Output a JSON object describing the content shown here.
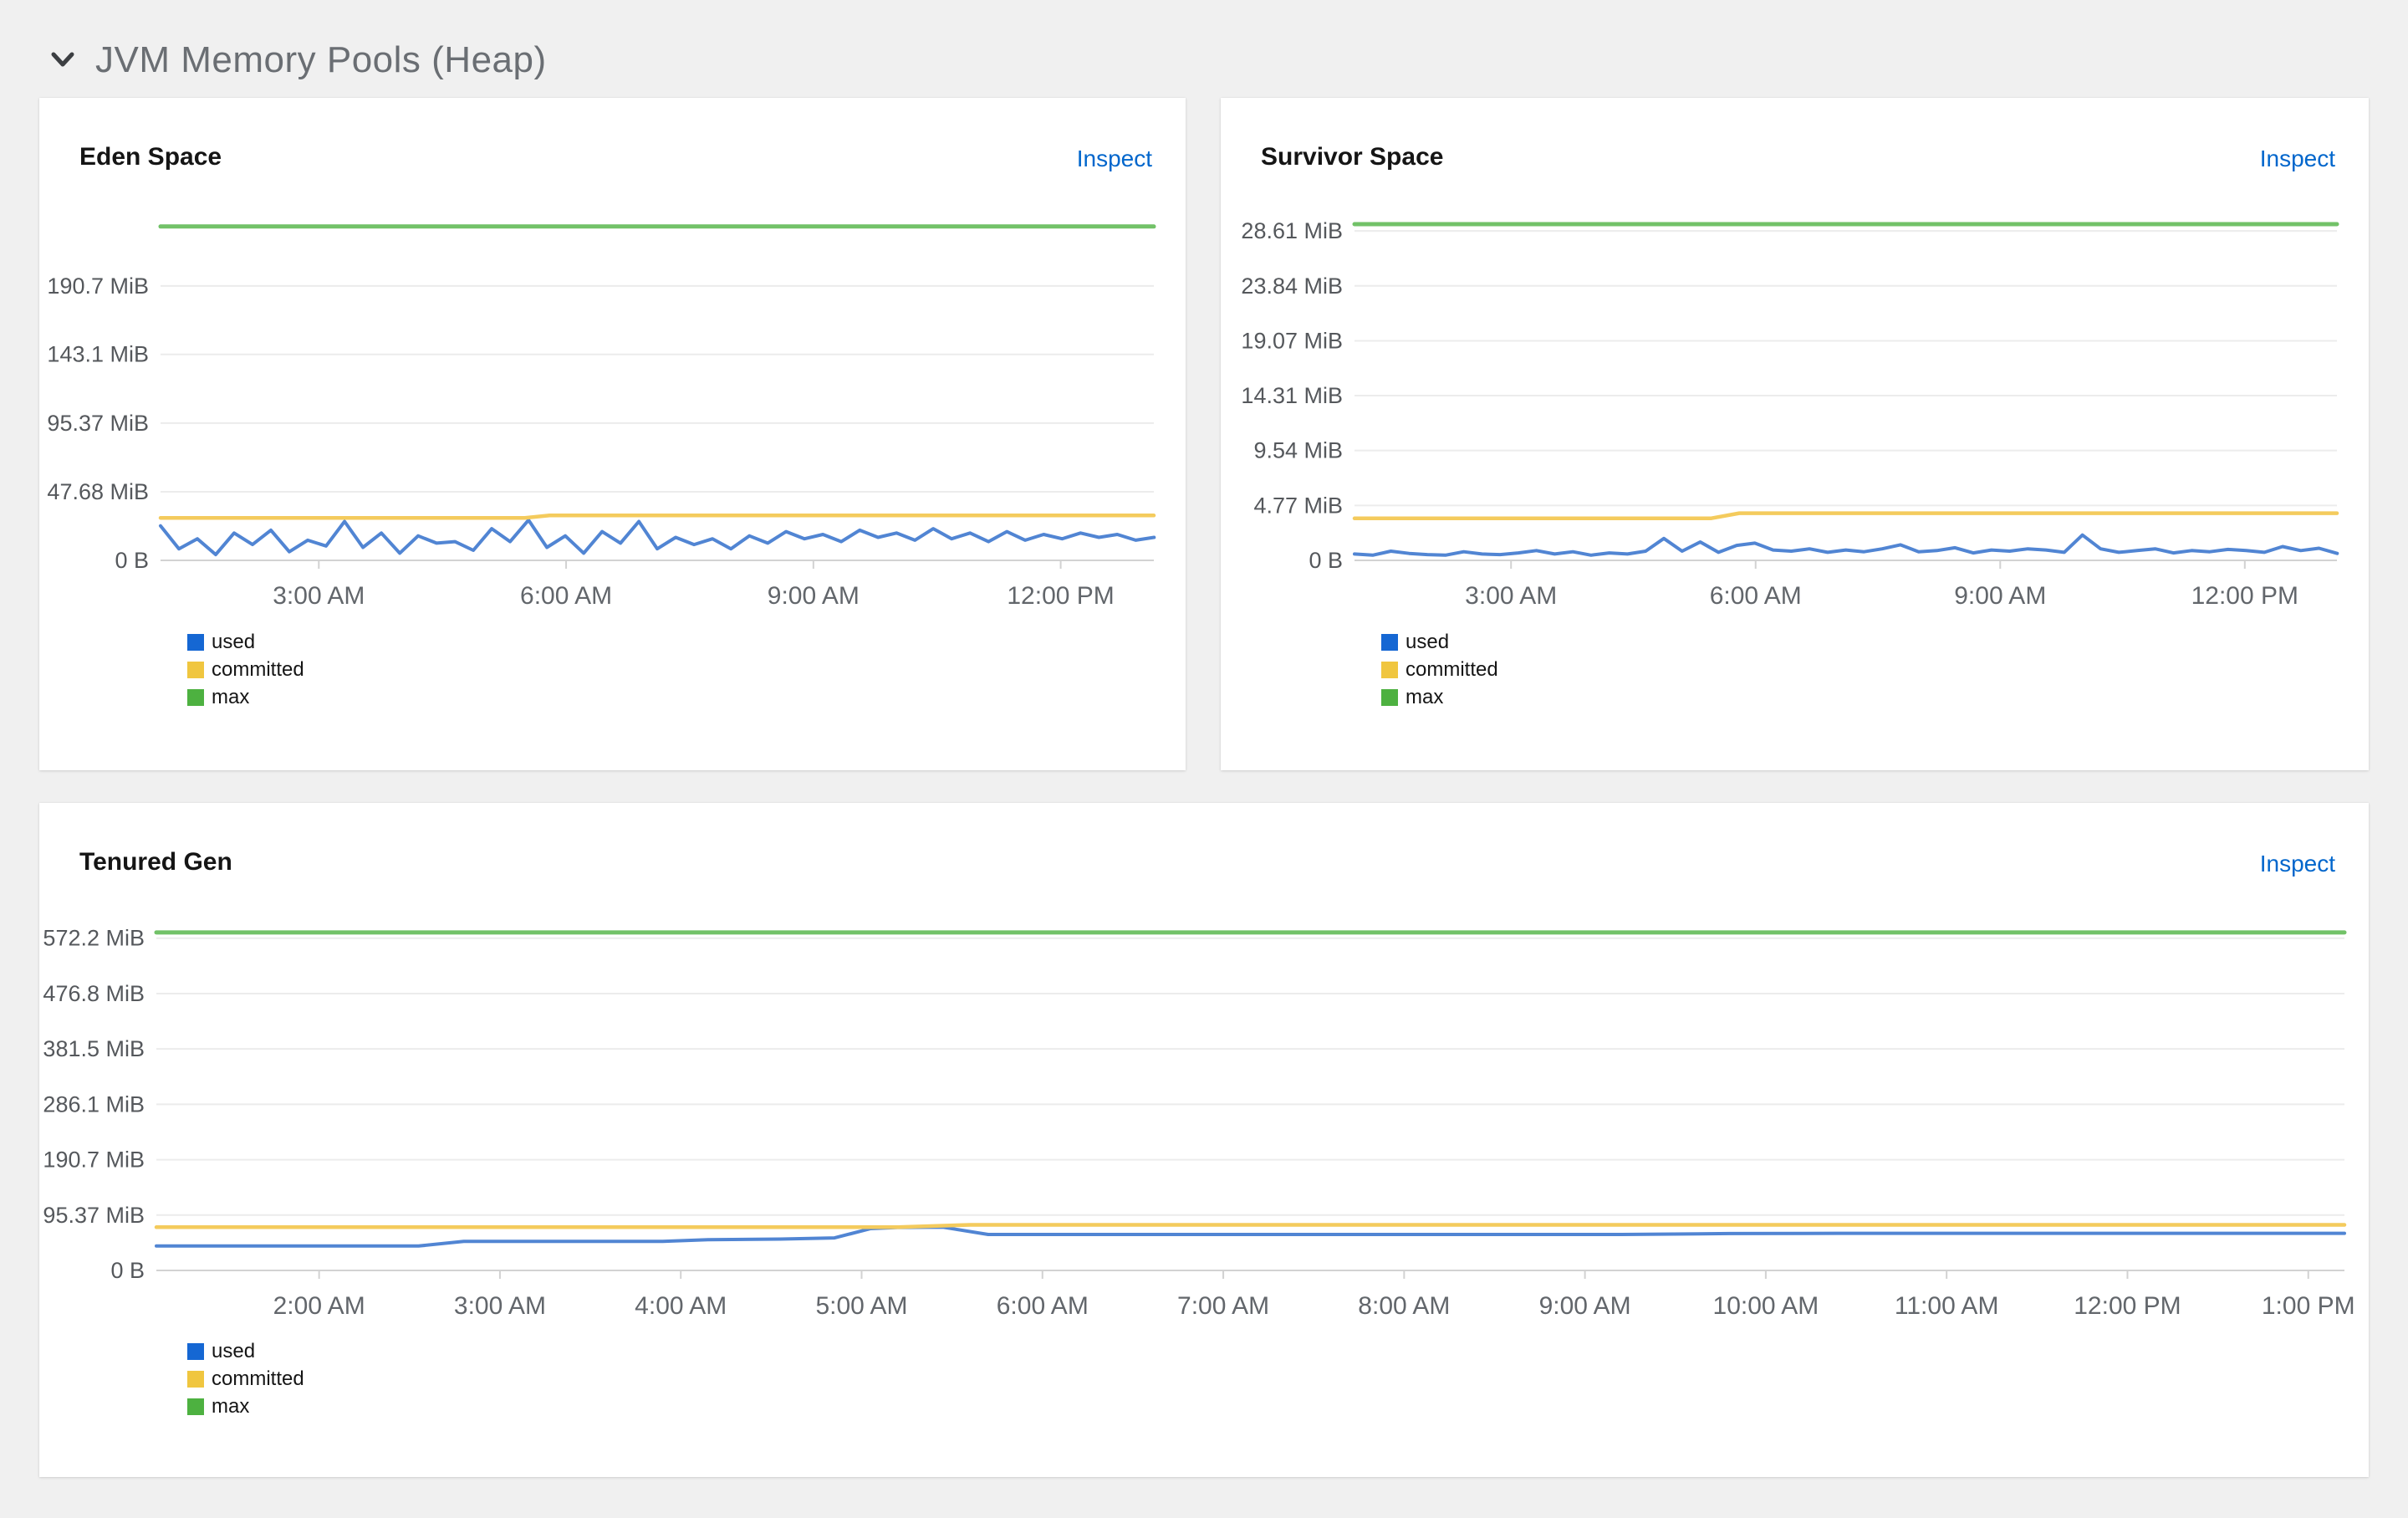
{
  "section": {
    "title": "JVM Memory Pools (Heap)"
  },
  "panels": [
    {
      "title": "Eden Space",
      "inspect": "Inspect"
    },
    {
      "title": "Survivor Space",
      "inspect": "Inspect"
    },
    {
      "title": "Tenured Gen",
      "inspect": "Inspect"
    }
  ],
  "colors": {
    "page_bg": "#f0f0f0",
    "panel_bg": "#ffffff",
    "section_title": "#6a6e73",
    "panel_title": "#151515",
    "link": "#0066cc",
    "grid_line": "#ececec",
    "axis_line": "#d2d2d2",
    "axis_text": "#55585c",
    "used_line": "#5185d3",
    "used_swatch": "#1567d3",
    "committed_line": "#f4cb5d",
    "committed_swatch": "#f0c63f",
    "max_line": "#72c268",
    "max_swatch": "#4db140"
  },
  "chart_data": [
    {
      "type": "line",
      "title": "Eden Space",
      "unit": "MiB",
      "y_max": 240,
      "yticks": [
        {
          "v": 190.7,
          "label": "190.7 MiB"
        },
        {
          "v": 143.1,
          "label": "143.1 MiB"
        },
        {
          "v": 95.37,
          "label": "95.37 MiB"
        },
        {
          "v": 47.68,
          "label": "47.68 MiB"
        },
        {
          "v": 0,
          "label": "0 B"
        }
      ],
      "x_domain_hours": [
        1.08,
        13.13
      ],
      "xticks": [
        {
          "h": 3,
          "label": "3:00 AM"
        },
        {
          "h": 6,
          "label": "6:00 AM"
        },
        {
          "h": 9,
          "label": "9:00 AM"
        },
        {
          "h": 12,
          "label": "12:00 PM"
        }
      ],
      "x_start_hour": 1.08,
      "x_step_hours": 0.2232,
      "series": [
        {
          "name": "used",
          "values": [
            24,
            8,
            15,
            4,
            19,
            11,
            21,
            6,
            14,
            10,
            27,
            9,
            19,
            5,
            17,
            12,
            13,
            7,
            22,
            13,
            28,
            9,
            17,
            5,
            20,
            12,
            27,
            8,
            16,
            11,
            15,
            8,
            17,
            12,
            20,
            15,
            18,
            13,
            21,
            16,
            19,
            14,
            22,
            15,
            19,
            13,
            20,
            14,
            18,
            15,
            19,
            16,
            18,
            14,
            16
          ]
        },
        {
          "name": "committed",
          "points": [
            [
              1.08,
              29.5
            ],
            [
              5.5,
              29.5
            ],
            [
              5.8,
              31.2
            ],
            [
              13.13,
              31.2
            ]
          ]
        },
        {
          "name": "max",
          "points": [
            [
              1.08,
              232
            ],
            [
              13.13,
              232
            ]
          ]
        }
      ]
    },
    {
      "type": "line",
      "title": "Survivor Space",
      "unit": "MiB",
      "y_max": 30,
      "yticks": [
        {
          "v": 28.61,
          "label": "28.61 MiB"
        },
        {
          "v": 23.84,
          "label": "23.84 MiB"
        },
        {
          "v": 19.07,
          "label": "19.07 MiB"
        },
        {
          "v": 14.31,
          "label": "14.31 MiB"
        },
        {
          "v": 9.54,
          "label": "9.54 MiB"
        },
        {
          "v": 4.77,
          "label": "4.77 MiB"
        },
        {
          "v": 0,
          "label": "0 B"
        }
      ],
      "x_domain_hours": [
        1.08,
        13.13
      ],
      "xticks": [
        {
          "h": 3,
          "label": "3:00 AM"
        },
        {
          "h": 6,
          "label": "6:00 AM"
        },
        {
          "h": 9,
          "label": "9:00 AM"
        },
        {
          "h": 12,
          "label": "12:00 PM"
        }
      ],
      "x_start_hour": 1.08,
      "x_step_hours": 0.2232,
      "series": [
        {
          "name": "used",
          "values": [
            0.55,
            0.45,
            0.8,
            0.6,
            0.5,
            0.45,
            0.75,
            0.55,
            0.5,
            0.65,
            0.85,
            0.55,
            0.75,
            0.45,
            0.65,
            0.55,
            0.8,
            1.9,
            0.8,
            1.6,
            0.7,
            1.3,
            1.5,
            0.9,
            0.8,
            1.0,
            0.7,
            0.9,
            0.75,
            1.0,
            1.35,
            0.75,
            0.85,
            1.1,
            0.65,
            0.9,
            0.8,
            1.0,
            0.9,
            0.7,
            2.2,
            1.0,
            0.7,
            0.85,
            1.0,
            0.65,
            0.85,
            0.75,
            0.95,
            0.85,
            0.7,
            1.2,
            0.85,
            1.05,
            0.6
          ]
        },
        {
          "name": "committed",
          "points": [
            [
              1.08,
              3.65
            ],
            [
              5.45,
              3.65
            ],
            [
              5.8,
              4.1
            ],
            [
              13.13,
              4.1
            ]
          ]
        },
        {
          "name": "max",
          "points": [
            [
              1.08,
              29.2
            ],
            [
              13.13,
              29.2
            ]
          ]
        }
      ]
    },
    {
      "type": "line",
      "title": "Tenured Gen",
      "unit": "MiB",
      "y_max": 592,
      "yticks": [
        {
          "v": 572.2,
          "label": "572.2 MiB"
        },
        {
          "v": 476.8,
          "label": "476.8 MiB"
        },
        {
          "v": 381.5,
          "label": "381.5 MiB"
        },
        {
          "v": 286.1,
          "label": "286.1 MiB"
        },
        {
          "v": 190.7,
          "label": "190.7 MiB"
        },
        {
          "v": 95.37,
          "label": "95.37 MiB"
        },
        {
          "v": 0,
          "label": "0 B"
        }
      ],
      "x_domain_hours": [
        1.1,
        13.2
      ],
      "xticks": [
        {
          "h": 2,
          "label": "2:00 AM"
        },
        {
          "h": 3,
          "label": "3:00 AM"
        },
        {
          "h": 4,
          "label": "4:00 AM"
        },
        {
          "h": 5,
          "label": "5:00 AM"
        },
        {
          "h": 6,
          "label": "6:00 AM"
        },
        {
          "h": 7,
          "label": "7:00 AM"
        },
        {
          "h": 8,
          "label": "8:00 AM"
        },
        {
          "h": 9,
          "label": "9:00 AM"
        },
        {
          "h": 10,
          "label": "10:00 AM"
        },
        {
          "h": 11,
          "label": "11:00 AM"
        },
        {
          "h": 12,
          "label": "12:00 PM"
        },
        {
          "h": 13,
          "label": "1:00 PM"
        }
      ],
      "series": [
        {
          "name": "used",
          "points": [
            [
              1.1,
              42
            ],
            [
              2.55,
              42
            ],
            [
              2.8,
              50
            ],
            [
              3.9,
              50
            ],
            [
              4.15,
              53
            ],
            [
              4.55,
              54
            ],
            [
              4.85,
              56
            ],
            [
              5.05,
              72
            ],
            [
              5.2,
              74
            ],
            [
              5.45,
              74.5
            ],
            [
              5.7,
              62
            ],
            [
              9.2,
              62
            ],
            [
              9.8,
              63.5
            ],
            [
              10.4,
              64
            ],
            [
              13.2,
              64
            ]
          ]
        },
        {
          "name": "committed",
          "points": [
            [
              1.1,
              74.5
            ],
            [
              5.2,
              74.5
            ],
            [
              5.6,
              78.5
            ],
            [
              13.2,
              78.5
            ]
          ]
        },
        {
          "name": "max",
          "points": [
            [
              1.1,
              582
            ],
            [
              13.2,
              582
            ]
          ]
        }
      ]
    }
  ]
}
